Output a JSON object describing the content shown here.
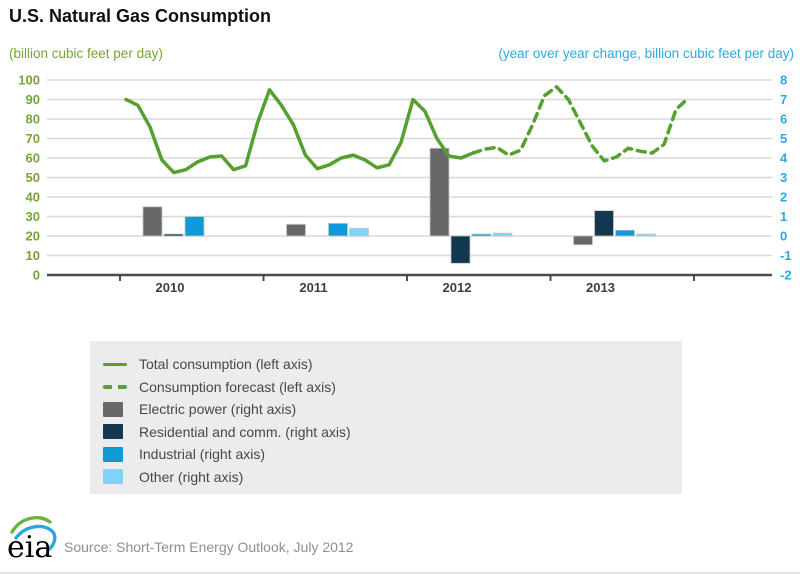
{
  "header": {
    "title": "U.S. Natural Gas Consumption"
  },
  "footer": {
    "logo_text": "eia",
    "source": "Source: Short-Term Energy Outlook, July 2012"
  },
  "colors": {
    "grid": "#d8d8d8",
    "axis": "#4b4b4b",
    "left_text": "#76a437",
    "right_text": "#2ea9e0",
    "line_green": "#55a02e",
    "bar_gray": "#686868",
    "bar_navy": "#12384f",
    "bar_blue": "#0f9ad7",
    "bar_lightblue": "#7fd4f5",
    "legend_bg": "#ececec"
  },
  "chart_data": {
    "type": "line+bar",
    "title": "U.S. Natural Gas Consumption",
    "left_axis": {
      "label": "(billion cubic feet per day)",
      "min": 0,
      "max": 100,
      "step": 10,
      "color": "#76a437"
    },
    "right_axis": {
      "label": "(year over year change, billion cubic feet per day)",
      "min": -2,
      "max": 8,
      "step": 1,
      "color": "#2ea9e0"
    },
    "x_axis": {
      "year_labels": [
        "2010",
        "2011",
        "2012",
        "2013"
      ],
      "months_start": "2010-01",
      "months_end": "2013-12"
    },
    "yoy_categories": [
      "2010",
      "2011",
      "2012",
      "2013"
    ],
    "series": [
      {
        "name": "Total consumption (left axis)",
        "type": "line",
        "style": "solid",
        "axis": "left",
        "color": "#55a02e",
        "start_index": 0,
        "values": [
          90,
          87,
          76,
          59,
          52.5,
          54,
          58,
          60.5,
          61,
          54,
          56,
          78,
          95,
          87,
          77,
          61.5,
          54.5,
          56.5,
          60,
          61.5,
          59,
          55,
          56.5,
          68,
          90,
          84,
          70,
          61,
          60,
          62.5
        ]
      },
      {
        "name": "Consumption forecast (left axis)",
        "type": "line",
        "style": "dashed",
        "axis": "left",
        "color": "#55a02e",
        "start_index": 29,
        "values": [
          62.5,
          64.5,
          65.5,
          61.5,
          64,
          77,
          92,
          96.5,
          90,
          78,
          66,
          58.5,
          60.5,
          65,
          63.5,
          62.5,
          67,
          85,
          90.5
        ]
      },
      {
        "name": "Electric power (right axis)",
        "type": "bar",
        "axis": "right",
        "color": "#686868",
        "values": [
          1.5,
          0.6,
          4.5,
          -0.45
        ]
      },
      {
        "name": "Residential and comm. (right axis)",
        "type": "bar",
        "axis": "right",
        "color": "#12384f",
        "values": [
          0.1,
          0,
          -1.4,
          1.3
        ]
      },
      {
        "name": "Industrial (right axis)",
        "type": "bar",
        "axis": "right",
        "color": "#0f9ad7",
        "values": [
          1.0,
          0.65,
          0.1,
          0.3
        ]
      },
      {
        "name": "Other (right axis)",
        "type": "bar",
        "axis": "right",
        "color": "#7fd4f5",
        "values": [
          0,
          0.4,
          0.15,
          0.1
        ]
      }
    ]
  }
}
